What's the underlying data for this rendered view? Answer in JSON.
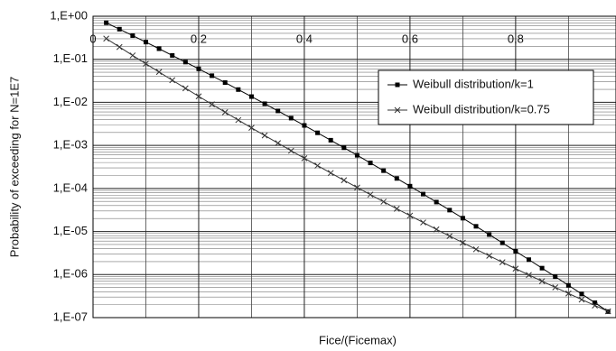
{
  "chart_data": {
    "type": "line",
    "xlabel": "Fice/(Ficemax)",
    "ylabel": "Probability of exceeding for N=1E7",
    "log_y": true,
    "grid": true,
    "minor_grid": true,
    "legend_position": "upper right",
    "xlim": [
      0,
      0.99
    ],
    "ylim": [
      1e-07,
      1
    ],
    "xticks": [
      0,
      {
        "value": 0.2,
        "label": "0,2"
      },
      {
        "value": 0.4,
        "label": "0,4"
      },
      {
        "value": 0.6,
        "label": "0,6"
      },
      {
        "value": 0.8,
        "label": "0,8"
      }
    ],
    "x_minor_ticks": [
      0.1,
      0.3,
      0.5,
      0.7,
      0.9
    ],
    "yticks": [
      {
        "value": 1,
        "label": "1,E+00"
      },
      {
        "value": 0.1,
        "label": "1,E-01"
      },
      {
        "value": 0.01,
        "label": "1,E-02"
      },
      {
        "value": 0.001,
        "label": "1,E-03"
      },
      {
        "value": 0.0001,
        "label": "1,E-04"
      },
      {
        "value": 1e-05,
        "label": "1,E-05"
      },
      {
        "value": 1e-06,
        "label": "1,E-06"
      },
      {
        "value": 1e-07,
        "label": "1,E-07"
      }
    ],
    "x": [
      0.025,
      0.05,
      0.075,
      0.1,
      0.125,
      0.15,
      0.175,
      0.2,
      0.225,
      0.25,
      0.275,
      0.3,
      0.325,
      0.35,
      0.375,
      0.4,
      0.425,
      0.45,
      0.475,
      0.5,
      0.525,
      0.55,
      0.575,
      0.6,
      0.625,
      0.65,
      0.675,
      0.7,
      0.725,
      0.75,
      0.775,
      0.8,
      0.825,
      0.85,
      0.875,
      0.9,
      0.925,
      0.95,
      0.975
    ],
    "series": [
      {
        "name": "Weibull distribution/k=1",
        "color": "#000000",
        "marker": "square",
        "values": [
          0.705,
          0.501,
          0.355,
          0.251,
          0.176,
          0.123,
          0.0862,
          0.06,
          0.0416,
          0.0288,
          0.0198,
          0.0136,
          0.00929,
          0.00633,
          0.0043,
          0.00291,
          0.00196,
          0.00132,
          0.000883,
          0.000589,
          0.000392,
          0.000259,
          0.000171,
          0.000113,
          7.39e-05,
          4.83e-05,
          3.14e-05,
          2.04e-05,
          1.32e-05,
          8.49e-06,
          5.45e-06,
          3.48e-06,
          2.22e-06,
          1.41e-06,
          8.93e-07,
          5.63e-07,
          3.54e-07,
          2.22e-07,
          1.38e-07
        ]
      },
      {
        "name": "Weibull distribution/k=0.75",
        "color": "#333333",
        "marker": "x",
        "values": [
          0.303,
          0.193,
          0.123,
          0.0788,
          0.0507,
          0.0327,
          0.0212,
          0.0138,
          0.009,
          0.0059,
          0.00388,
          0.00256,
          0.0017,
          0.00113,
          0.000752,
          0.000504,
          0.000339,
          0.000229,
          0.000155,
          0.000105,
          7.19e-05,
          4.92e-05,
          3.38e-05,
          2.34e-05,
          1.62e-05,
          1.12e-05,
          7.85e-06,
          5.5e-06,
          3.86e-06,
          2.73e-06,
          1.93e-06,
          1.37e-06,
          9.79e-07,
          7.02e-07,
          5.04e-07,
          3.64e-07,
          2.63e-07,
          1.91e-07,
          1.4e-07
        ]
      }
    ]
  }
}
